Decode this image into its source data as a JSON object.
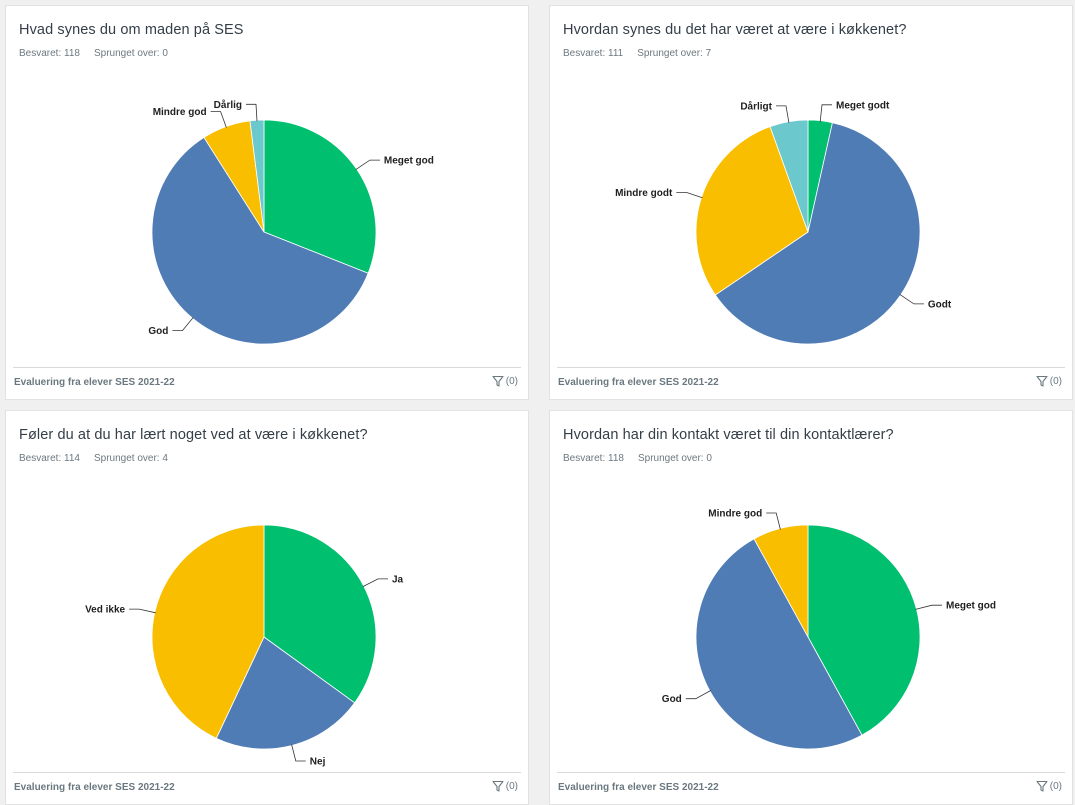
{
  "colors": {
    "green": "#00bf6f",
    "blue": "#507cb6",
    "yellow": "#f9be00",
    "teal": "#6bc8cd"
  },
  "cards": [
    {
      "title": "Hvad synes du om maden på SES",
      "answered": "Besvaret: 118",
      "skipped": "Sprunget over: 0",
      "footer": "Evaluering fra elever SES 2021-22",
      "filter_count": "(0)"
    },
    {
      "title": "Hvordan synes du det har været at være i køkkenet?",
      "answered": "Besvaret: 111",
      "skipped": "Sprunget over: 7",
      "footer": "Evaluering fra elever SES 2021-22",
      "filter_count": "(0)"
    },
    {
      "title": "Føler du at du har lært noget ved at være i køkkenet?",
      "answered": "Besvaret: 114",
      "skipped": "Sprunget over: 4",
      "footer": "Evaluering fra elever SES 2021-22",
      "filter_count": "(0)"
    },
    {
      "title": "Hvordan har din kontakt været til din kontaktlærer?",
      "answered": "Besvaret: 118",
      "skipped": "Sprunget over: 0",
      "footer": "Evaluering fra elever SES 2021-22",
      "filter_count": "(0)"
    }
  ],
  "chart_data": [
    {
      "type": "pie",
      "title": "Hvad synes du om maden på SES",
      "labels": [
        "Meget god",
        "God",
        "Mindre god",
        "Dårlig"
      ],
      "values": [
        31,
        60,
        7,
        2
      ],
      "colors": [
        "#00bf6f",
        "#507cb6",
        "#f9be00",
        "#6bc8cd"
      ]
    },
    {
      "type": "pie",
      "title": "Hvordan synes du det har været at være i køkkenet?",
      "labels": [
        "Meget godt",
        "Godt",
        "Mindre godt",
        "Dårligt"
      ],
      "values": [
        3.5,
        62,
        29,
        5.5
      ],
      "colors": [
        "#00bf6f",
        "#507cb6",
        "#f9be00",
        "#6bc8cd"
      ]
    },
    {
      "type": "pie",
      "title": "Føler du at du har lært noget ved at være i køkkenet?",
      "labels": [
        "Ja",
        "Nej",
        "Ved ikke"
      ],
      "values": [
        35,
        22,
        43
      ],
      "colors": [
        "#00bf6f",
        "#507cb6",
        "#f9be00"
      ]
    },
    {
      "type": "pie",
      "title": "Hvordan har din kontakt været til din kontaktlærer?",
      "labels": [
        "Meget god",
        "God",
        "Mindre god"
      ],
      "values": [
        42,
        50,
        8
      ],
      "colors": [
        "#00bf6f",
        "#507cb6",
        "#f9be00"
      ]
    }
  ]
}
